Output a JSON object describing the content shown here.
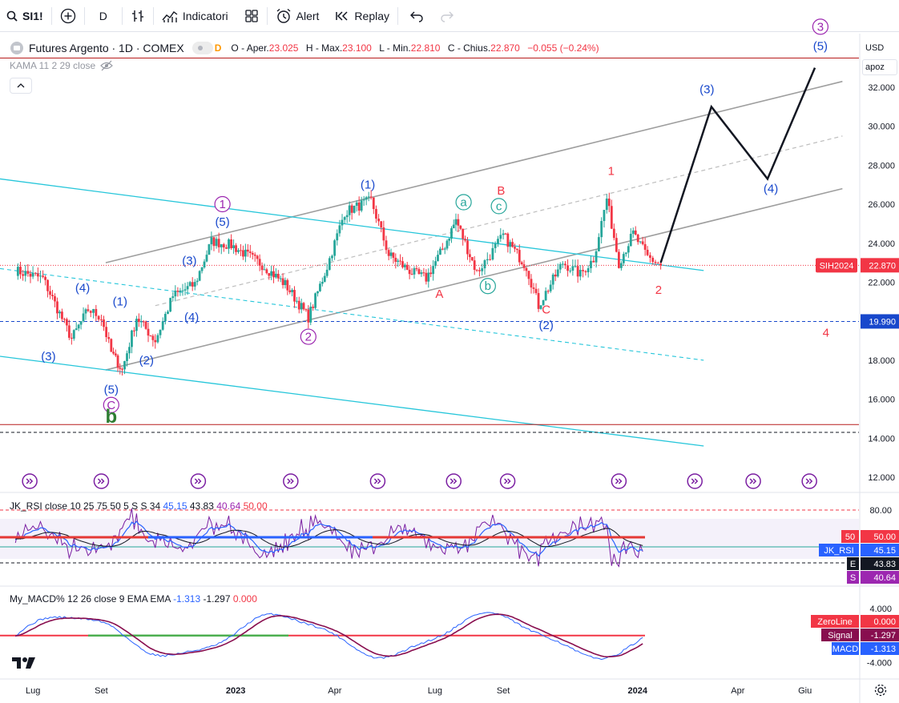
{
  "toolbar": {
    "symbol": "SI1!",
    "interval": "D",
    "indicators_label": "Indicatori",
    "alert_label": "Alert",
    "replay_label": "Replay"
  },
  "legend": {
    "title": "Futures Argento · 1D · COMEX",
    "badge": "D",
    "o_label": "O - Aper.",
    "o": "23.025",
    "h_label": "H - Max.",
    "h": "23.100",
    "l_label": "L - Min.",
    "l": "22.810",
    "c_label": "C - Chius.",
    "c": "22.870",
    "change": "−0.055 (−0.24%)"
  },
  "kama": {
    "label": "KAMA 11 2 29 close"
  },
  "scale": {
    "currency": "USD",
    "mode": "apoz"
  },
  "rsi_pane": {
    "name": "JK_RSI",
    "params": "close 10 25 75 50 5 S S 34",
    "v1": "45.15",
    "v2": "43.83",
    "v3": "40.64",
    "v4": "50.00",
    "labels": [
      {
        "tag": "50",
        "value": "50.00",
        "color": "#f23645"
      },
      {
        "tag": "JK_RSI",
        "value": "45.15",
        "color": "#2962ff"
      },
      {
        "tag": "E",
        "value": "43.83",
        "color": "#131722"
      },
      {
        "tag": "S",
        "value": "40.64",
        "color": "#9c27b0"
      }
    ],
    "ticks": [
      "80.00"
    ]
  },
  "macd_pane": {
    "name": "My_MACD%",
    "params": "12 26 close 9 EMA EMA",
    "v1": "-1.313",
    "v2": "-1.297",
    "v3": "0.000",
    "labels": [
      {
        "tag": "ZeroLine",
        "value": "0.000",
        "color": "#f23645"
      },
      {
        "tag": "Signal",
        "value": "-1.297",
        "color": "#880e4f"
      },
      {
        "tag": "MACD",
        "value": "-1.313",
        "color": "#2962ff"
      }
    ],
    "ticks": [
      "4.000",
      "-4.000"
    ]
  },
  "chart_data": {
    "type": "line",
    "title": "Futures Argento · 1D · COMEX",
    "subtitle": "",
    "x": [
      "2022-06-15",
      "2022-07-10",
      "2022-08-05",
      "2022-08-20",
      "2022-09-01",
      "2022-09-10",
      "2022-09-20",
      "2022-10-03",
      "2022-10-20",
      "2022-11-05",
      "2022-11-25",
      "2022-12-10",
      "2022-12-28",
      "2023-01-25",
      "2023-02-15",
      "2023-03-08",
      "2023-03-25",
      "2023-04-10",
      "2023-05-04",
      "2023-05-20",
      "2023-06-10",
      "2023-06-23",
      "2023-07-10",
      "2023-07-20",
      "2023-08-08",
      "2023-08-20",
      "2023-09-01",
      "2023-09-22",
      "2023-10-03",
      "2023-10-25",
      "2023-11-10",
      "2023-11-22",
      "2023-12-04",
      "2023-12-15",
      "2023-12-28",
      "2024-01-10",
      "2024-01-22"
    ],
    "series": [
      {
        "name": "",
        "values": [
          22.6,
          22.2,
          19.1,
          20.6,
          20.2,
          18.4,
          17.5,
          20.2,
          19.0,
          21.3,
          21.9,
          24.1,
          23.9,
          22.9,
          21.9,
          20.2,
          22.8,
          25.6,
          26.2,
          23.4,
          22.5,
          22.2,
          23.9,
          25.2,
          22.5,
          23.4,
          24.4,
          22.8,
          20.8,
          23.0,
          22.4,
          23.2,
          26.3,
          23.0,
          24.5,
          23.3,
          22.87
        ]
      }
    ],
    "projection": {
      "x": [
        "2024-01-22",
        "2024-03-08",
        "2024-04-28",
        "2024-06-10"
      ],
      "values": [
        23.0,
        31.0,
        27.3,
        33.0
      ]
    },
    "ylim": [
      11.5,
      34.2
    ],
    "y_ticks": [
      "12.000",
      "14.000",
      "16.000",
      "18.000",
      "20.000",
      "22.000",
      "24.000",
      "26.000",
      "28.000",
      "30.000",
      "32.000"
    ],
    "x_ticks": [
      "Lug",
      "Set",
      "2023",
      "Apr",
      "Lug",
      "Set",
      "2024",
      "Apr",
      "Giu"
    ],
    "price_labels": [
      {
        "tag": "SIH2024",
        "value": "22.870",
        "color": "#f23645"
      },
      {
        "tag": "",
        "value": "19.990",
        "color": "#1848cc"
      }
    ],
    "horizontal_levels": [
      33.5,
      19.99,
      14.7,
      14.3
    ],
    "wave_labels": [
      {
        "text": "(3)",
        "x": "2022-07-15",
        "y": 18.0,
        "color": "#1848cc",
        "circle": false
      },
      {
        "text": "(4)",
        "x": "2022-08-15",
        "y": 21.5,
        "color": "#1848cc",
        "circle": false
      },
      {
        "text": "(5)",
        "x": "2022-09-10",
        "y": 16.3,
        "color": "#1848cc",
        "circle": false
      },
      {
        "text": "C",
        "x": "2022-09-10",
        "y": 15.5,
        "color": "#9c27b0",
        "circle": true
      },
      {
        "text": "b",
        "x": "2022-09-10",
        "y": 14.8,
        "color": "#2e7d32",
        "circle": false
      },
      {
        "text": "(1)",
        "x": "2022-09-18",
        "y": 20.8,
        "color": "#1848cc",
        "circle": false
      },
      {
        "text": "(2)",
        "x": "2022-10-12",
        "y": 17.8,
        "color": "#1848cc",
        "circle": false
      },
      {
        "text": "(3)",
        "x": "2022-11-20",
        "y": 22.9,
        "color": "#1848cc",
        "circle": false
      },
      {
        "text": "(4)",
        "x": "2022-11-22",
        "y": 20.0,
        "color": "#1848cc",
        "circle": false
      },
      {
        "text": "(5)",
        "x": "2022-12-20",
        "y": 24.9,
        "color": "#1848cc",
        "circle": false
      },
      {
        "text": "1",
        "x": "2022-12-20",
        "y": 25.8,
        "color": "#9c27b0",
        "circle": true
      },
      {
        "text": "2",
        "x": "2023-03-08",
        "y": 19.0,
        "color": "#9c27b0",
        "circle": true
      },
      {
        "text": "(1)",
        "x": "2023-05-01",
        "y": 26.8,
        "color": "#1848cc",
        "circle": false
      },
      {
        "text": "A",
        "x": "2023-07-05",
        "y": 21.2,
        "color": "#f23645",
        "circle": false
      },
      {
        "text": "a",
        "x": "2023-07-27",
        "y": 25.9,
        "color": "#26a69a",
        "circle": true
      },
      {
        "text": "b",
        "x": "2023-08-18",
        "y": 21.6,
        "color": "#26a69a",
        "circle": true
      },
      {
        "text": "B",
        "x": "2023-08-30",
        "y": 26.5,
        "color": "#f23645",
        "circle": false
      },
      {
        "text": "c",
        "x": "2023-08-28",
        "y": 25.7,
        "color": "#26a69a",
        "circle": true
      },
      {
        "text": "C",
        "x": "2023-10-10",
        "y": 20.4,
        "color": "#f23645",
        "circle": false
      },
      {
        "text": "(2)",
        "x": "2023-10-10",
        "y": 19.6,
        "color": "#1848cc",
        "circle": false
      },
      {
        "text": "1",
        "x": "2023-12-08",
        "y": 27.5,
        "color": "#f23645",
        "circle": false
      },
      {
        "text": "2",
        "x": "2024-01-20",
        "y": 21.4,
        "color": "#f23645",
        "circle": false
      },
      {
        "text": "(3)",
        "x": "2024-03-04",
        "y": 31.7,
        "color": "#1848cc",
        "circle": false
      },
      {
        "text": "(4)",
        "x": "2024-05-01",
        "y": 26.6,
        "color": "#1848cc",
        "circle": false
      },
      {
        "text": "(5)",
        "x": "2024-06-15",
        "y": 33.9,
        "color": "#1848cc",
        "circle": false
      },
      {
        "text": "3",
        "x": "2024-06-15",
        "y": 34.9,
        "color": "#9c27b0",
        "circle": true
      },
      {
        "text": "4",
        "x": "2024-06-20",
        "y": 19.2,
        "color": "#f23645",
        "circle": false
      }
    ],
    "grid": false,
    "legend": "top-left"
  }
}
